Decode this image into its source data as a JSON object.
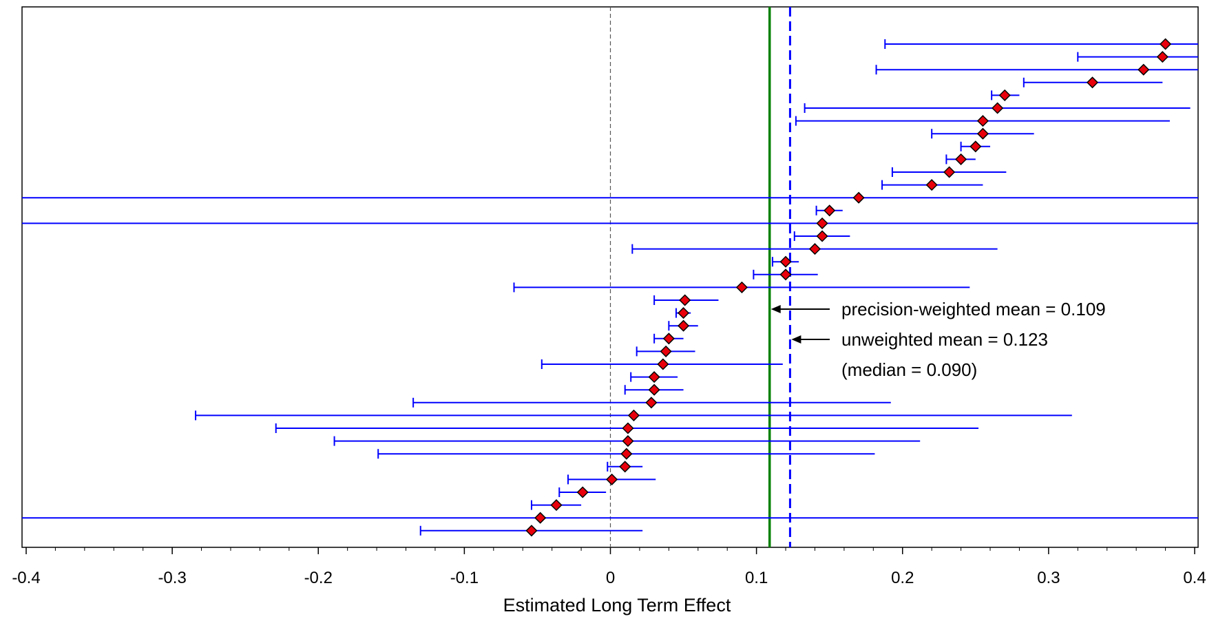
{
  "chart_data": {
    "type": "forest",
    "xlabel": "Estimated Long Term Effect",
    "xlim": [
      -0.4,
      0.4
    ],
    "xticks": [
      "-0.4",
      "-0.3",
      "-0.2",
      "-0.1",
      "0",
      "0.1",
      "0.2",
      "0.3",
      "0.4"
    ],
    "reference_line": 0,
    "lines": {
      "precision_weighted_mean": 0.109,
      "unweighted_mean": 0.123
    },
    "annotations": {
      "precision_weighted_mean": "precision-weighted mean = 0.109",
      "unweighted_mean": "unweighted mean = 0.123",
      "median": "(median = 0.090)"
    },
    "colors": {
      "estimate_marker": "#e8000b",
      "interval": "#0000ff",
      "weighted_mean_line": "#008000",
      "unweighted_mean_line": "#0000ff",
      "zero_line": "#555555"
    },
    "estimates": [
      {
        "estimate": 0.38,
        "lower": 0.188,
        "upper": 0.4
      },
      {
        "estimate": 0.378,
        "lower": 0.32,
        "upper": 0.4
      },
      {
        "estimate": 0.365,
        "lower": 0.182,
        "upper": 0.4
      },
      {
        "estimate": 0.33,
        "lower": 0.283,
        "upper": 0.378
      },
      {
        "estimate": 0.27,
        "lower": 0.261,
        "upper": 0.28
      },
      {
        "estimate": 0.265,
        "lower": 0.133,
        "upper": 0.397
      },
      {
        "estimate": 0.255,
        "lower": 0.127,
        "upper": 0.383
      },
      {
        "estimate": 0.255,
        "lower": 0.22,
        "upper": 0.29
      },
      {
        "estimate": 0.25,
        "lower": 0.24,
        "upper": 0.26
      },
      {
        "estimate": 0.24,
        "lower": 0.23,
        "upper": 0.25
      },
      {
        "estimate": 0.232,
        "lower": 0.193,
        "upper": 0.271
      },
      {
        "estimate": 0.22,
        "lower": 0.186,
        "upper": 0.255
      },
      {
        "estimate": 0.17,
        "lower": -0.4,
        "upper": 0.4
      },
      {
        "estimate": 0.15,
        "lower": 0.141,
        "upper": 0.159
      },
      {
        "estimate": 0.145,
        "lower": -0.4,
        "upper": 0.4
      },
      {
        "estimate": 0.145,
        "lower": 0.126,
        "upper": 0.164
      },
      {
        "estimate": 0.14,
        "lower": 0.015,
        "upper": 0.265
      },
      {
        "estimate": 0.12,
        "lower": 0.111,
        "upper": 0.129
      },
      {
        "estimate": 0.12,
        "lower": 0.098,
        "upper": 0.142
      },
      {
        "estimate": 0.09,
        "lower": -0.066,
        "upper": 0.246
      },
      {
        "estimate": 0.051,
        "lower": 0.03,
        "upper": 0.074
      },
      {
        "estimate": 0.05,
        "lower": 0.045,
        "upper": 0.055
      },
      {
        "estimate": 0.05,
        "lower": 0.04,
        "upper": 0.06
      },
      {
        "estimate": 0.04,
        "lower": 0.03,
        "upper": 0.05
      },
      {
        "estimate": 0.038,
        "lower": 0.018,
        "upper": 0.058
      },
      {
        "estimate": 0.036,
        "lower": -0.047,
        "upper": 0.118
      },
      {
        "estimate": 0.03,
        "lower": 0.014,
        "upper": 0.046
      },
      {
        "estimate": 0.03,
        "lower": 0.01,
        "upper": 0.05
      },
      {
        "estimate": 0.028,
        "lower": -0.135,
        "upper": 0.192
      },
      {
        "estimate": 0.016,
        "lower": -0.284,
        "upper": 0.316
      },
      {
        "estimate": 0.012,
        "lower": -0.229,
        "upper": 0.252
      },
      {
        "estimate": 0.012,
        "lower": -0.189,
        "upper": 0.212
      },
      {
        "estimate": 0.011,
        "lower": -0.159,
        "upper": 0.181
      },
      {
        "estimate": 0.01,
        "lower": -0.002,
        "upper": 0.022
      },
      {
        "estimate": 0.001,
        "lower": -0.029,
        "upper": 0.031
      },
      {
        "estimate": -0.019,
        "lower": -0.035,
        "upper": -0.003
      },
      {
        "estimate": -0.037,
        "lower": -0.054,
        "upper": -0.02
      },
      {
        "estimate": -0.048,
        "lower": -0.4,
        "upper": 0.4
      },
      {
        "estimate": -0.054,
        "lower": -0.13,
        "upper": 0.022
      }
    ]
  }
}
